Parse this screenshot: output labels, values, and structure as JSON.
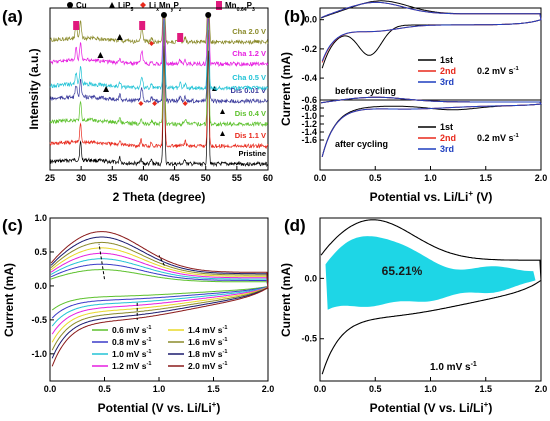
{
  "chart_data": [
    {
      "panel": "(a)",
      "type": "line",
      "xlabel": "2 Theta (degree)",
      "ylabel": "Intensity (a.u.)",
      "xlim": [
        25,
        60
      ],
      "xticks": [
        "25",
        "30",
        "35",
        "40",
        "45",
        "50",
        "55",
        "60"
      ],
      "legend": [
        {
          "label": "Cu",
          "marker": "circle",
          "color": "#000000"
        },
        {
          "label": "LiP",
          "sub": "5",
          "marker": "triangle",
          "color": "#000000"
        },
        {
          "label": "Li",
          "sub": "x",
          "label2": "Mn",
          "sub2": "y",
          "label3": "P",
          "sub3": "z",
          "marker": "diamond",
          "color": "#e8291c"
        },
        {
          "label": "Mn",
          "sub": "0.64",
          "label2": "P",
          "sub2": "3",
          "marker": "rect",
          "color": "#e0197d"
        }
      ],
      "series": [
        {
          "name": "Pristine",
          "color": "#000000"
        },
        {
          "name": "Dis 1.1 V",
          "color": "#e8291c"
        },
        {
          "name": "Dis 0.4 V",
          "color": "#5cc12c"
        },
        {
          "name": "Dis 0.01 V",
          "color": "#3a3a9c"
        },
        {
          "name": "Cha 0.5 V",
          "color": "#22c3d6"
        },
        {
          "name": "Cha 1.2 V",
          "color": "#e61ee0"
        },
        {
          "name": "Cha 2.0 V",
          "color": "#8a8a2a"
        }
      ],
      "peaks": {
        "cu": [
          43.3,
          50.4
        ],
        "lip5": [
          29.9,
          36.2
        ],
        "lixmnypz": [
          39.6,
          41.3,
          46.7
        ],
        "mn064p3": [
          29.2,
          39.8,
          45.9
        ]
      }
    },
    {
      "panel": "(b)",
      "type": "line",
      "xlabel": "Potential vs. Li/Li",
      "xlabel_sup": "+",
      "xlabel_suffix": " (V)",
      "ylabel": "Current (mA)",
      "xlim": [
        0,
        2.0
      ],
      "xticks": [
        "0.0",
        "0.5",
        "1.0",
        "1.5",
        "2.0"
      ],
      "yticks_top": [
        "0.0",
        "-0.2",
        "-0.4"
      ],
      "yticks_bottom": [
        "-0.6",
        "-0.8",
        "-1.0",
        "-1.2",
        "-1.4",
        "-1.6"
      ],
      "subplots": [
        {
          "annotation": "before cycling",
          "rate": "0.2 mV s",
          "rate_sup": "-1",
          "series": [
            {
              "name": "1st",
              "color": "#000000"
            },
            {
              "name": "2nd",
              "color": "#e8291c"
            },
            {
              "name": "3rd",
              "color": "#1f3fbf"
            }
          ]
        },
        {
          "annotation": "after cycling",
          "rate": "0.2 mV s",
          "rate_sup": "-1",
          "series": [
            {
              "name": "1st",
              "color": "#000000"
            },
            {
              "name": "2nd",
              "color": "#e8291c"
            },
            {
              "name": "3rd",
              "color": "#1f3fbf"
            }
          ]
        }
      ]
    },
    {
      "panel": "(c)",
      "type": "line",
      "xlabel": "Potential (V vs. Li/Li",
      "xlabel_sup": "+",
      "xlabel_suffix": ")",
      "ylabel": "Current (mA)",
      "xlim": [
        0,
        2.0
      ],
      "ylim": [
        -1.4,
        1.0
      ],
      "xticks": [
        "0.0",
        "0.5",
        "1.0",
        "1.5",
        "2.0"
      ],
      "yticks": [
        "1.0",
        "0.5",
        "0.0",
        "-0.5",
        "-1.0"
      ],
      "series": [
        {
          "name": "0.6 mV s",
          "sup": "-1",
          "color": "#5cc12c",
          "rate": 0.6
        },
        {
          "name": "0.8 mV s",
          "sup": "-1",
          "color": "#3a3ac8",
          "rate": 0.8
        },
        {
          "name": "1.0 mV s",
          "sup": "-1",
          "color": "#22c3d6",
          "rate": 1.0
        },
        {
          "name": "1.2 mV s",
          "sup": "-1",
          "color": "#e61ee0",
          "rate": 1.2
        },
        {
          "name": "1.4 mV s",
          "sup": "-1",
          "color": "#e8d828",
          "rate": 1.4
        },
        {
          "name": "1.6 mV s",
          "sup": "-1",
          "color": "#8a8a2a",
          "rate": 1.6
        },
        {
          "name": "1.8 mV s",
          "sup": "-1",
          "color": "#1a1a6e",
          "rate": 1.8
        },
        {
          "name": "2.0 mV s",
          "sup": "-1",
          "color": "#8b1a1a",
          "rate": 2.0
        }
      ]
    },
    {
      "panel": "(d)",
      "type": "area",
      "xlabel": "Potential (V vs. Li/Li",
      "xlabel_sup": "+",
      "xlabel_suffix": ")",
      "ylabel": "Current (mA)",
      "xlim": [
        0,
        2.0
      ],
      "ylim": [
        -0.85,
        0.5
      ],
      "xticks": [
        "0.0",
        "0.5",
        "1.0",
        "1.5",
        "2.0"
      ],
      "yticks": [
        "0.0",
        "-0.5"
      ],
      "annotation": "65.21%",
      "fill_color": "#1ed6e6",
      "rate": "1.0 mV s",
      "rate_sup": "-1"
    }
  ]
}
